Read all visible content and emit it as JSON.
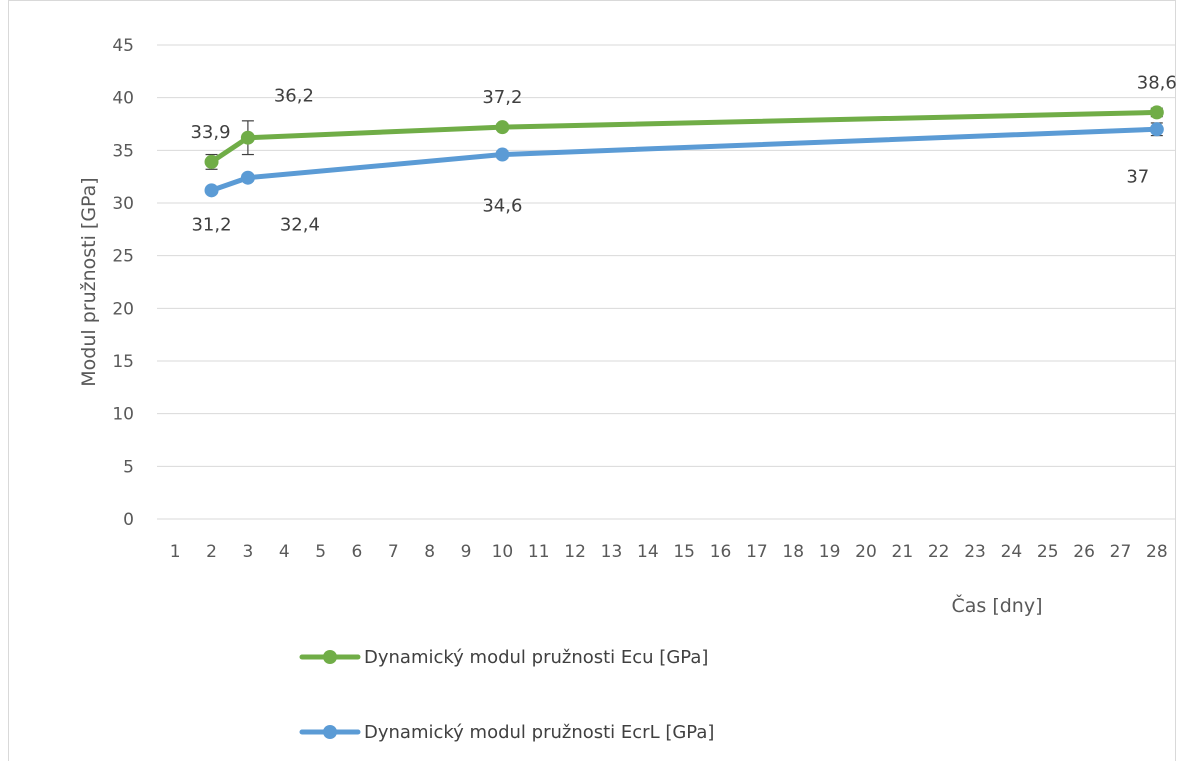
{
  "chart_data": {
    "type": "line",
    "xlabel": "Čas [dny]",
    "ylabel": "Modul pružnosti  [GPa]",
    "x_ticks": [
      "1",
      "2",
      "3",
      "4",
      "5",
      "6",
      "7",
      "8",
      "9",
      "10",
      "11",
      "12",
      "13",
      "14",
      "15",
      "16",
      "17",
      "18",
      "19",
      "20",
      "21",
      "22",
      "23",
      "24",
      "25",
      "26",
      "27",
      "28"
    ],
    "y_ticks": [
      "0",
      "5",
      "10",
      "15",
      "20",
      "25",
      "30",
      "35",
      "40",
      "45"
    ],
    "ylim": [
      0,
      45
    ],
    "xlim": [
      1,
      28
    ],
    "grid": "horizontal",
    "legend_position": "bottom-left",
    "series": [
      {
        "name": "Dynamický modul pružnosti Ecu [GPa]",
        "color": "#70ad47",
        "x": [
          2,
          3,
          10,
          28
        ],
        "values": [
          33.9,
          36.2,
          37.2,
          38.6
        ],
        "errors": [
          0.7,
          1.6,
          0.3,
          0.4
        ],
        "labels": [
          "33,9",
          "36,2",
          "37,2",
          "38,6"
        ]
      },
      {
        "name": "Dynamický modul pružnosti EcrL [GPa]",
        "color": "#5b9bd5",
        "x": [
          2,
          3,
          10,
          28
        ],
        "values": [
          31.2,
          32.4,
          34.6,
          37.0
        ],
        "errors": [
          0.3,
          0.3,
          0.3,
          0.6
        ],
        "labels": [
          "31,2",
          "32,4",
          "34,6",
          "37"
        ]
      }
    ]
  }
}
